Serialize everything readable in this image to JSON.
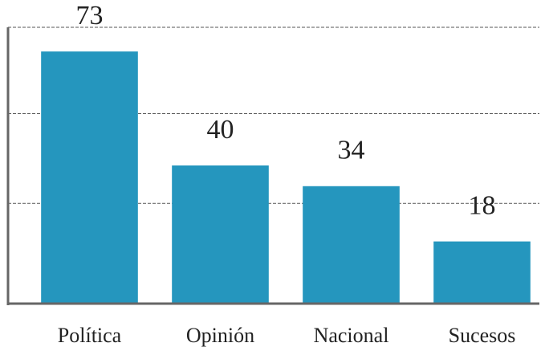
{
  "chart_data": {
    "type": "bar",
    "categories": [
      "Política",
      "Opinión",
      "Nacional",
      "Sucesos"
    ],
    "values": [
      73,
      40,
      34,
      18
    ],
    "color": "#2596be",
    "ylim": [
      0,
      80
    ],
    "yticks": [
      29,
      55,
      80
    ],
    "grid": true
  }
}
